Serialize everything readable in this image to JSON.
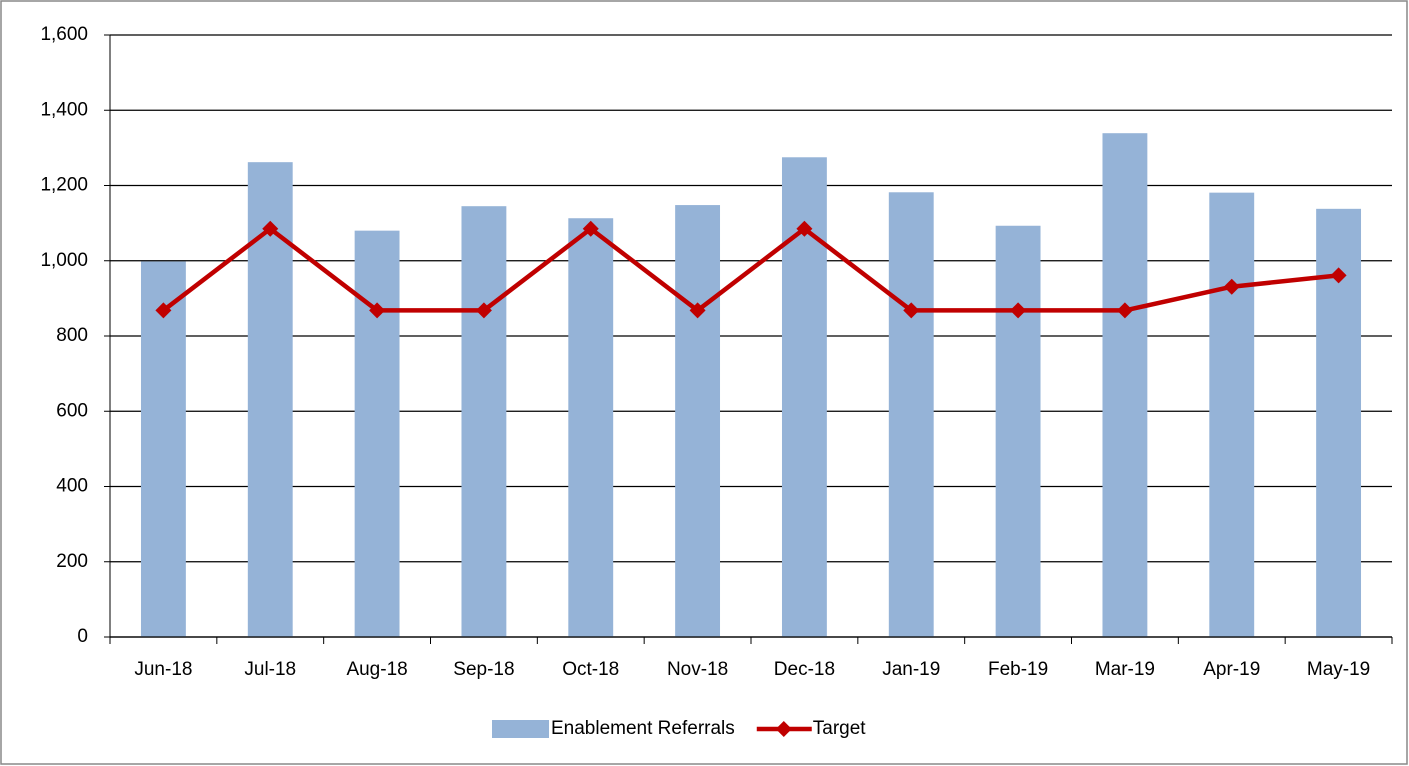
{
  "chart_data": {
    "type": "bar",
    "categories": [
      "Jun-18",
      "Jul-18",
      "Aug-18",
      "Sep-18",
      "Oct-18",
      "Nov-18",
      "Dec-18",
      "Jan-19",
      "Feb-19",
      "Mar-19",
      "Apr-19",
      "May-19"
    ],
    "series": [
      {
        "name": "Enablement Referrals",
        "type": "bar",
        "color": "#95b3d7",
        "values": [
          998,
          1262,
          1080,
          1145,
          1113,
          1148,
          1275,
          1182,
          1093,
          1339,
          1181,
          1138
        ]
      },
      {
        "name": "Target",
        "type": "line",
        "color": "#c00000",
        "values": [
          868,
          1085,
          868,
          868,
          1085,
          868,
          1085,
          868,
          868,
          868,
          931,
          961
        ]
      }
    ],
    "ylim": [
      0,
      1600
    ],
    "yticks": [
      0,
      200,
      400,
      600,
      800,
      {
        "value": 1000,
        "label": "1,000"
      },
      {
        "value": 1200,
        "label": "1,200"
      },
      {
        "value": 1400,
        "label": "1,400"
      },
      {
        "value": 1600,
        "label": "1,600"
      }
    ],
    "grid": true,
    "legend": "bottom"
  }
}
